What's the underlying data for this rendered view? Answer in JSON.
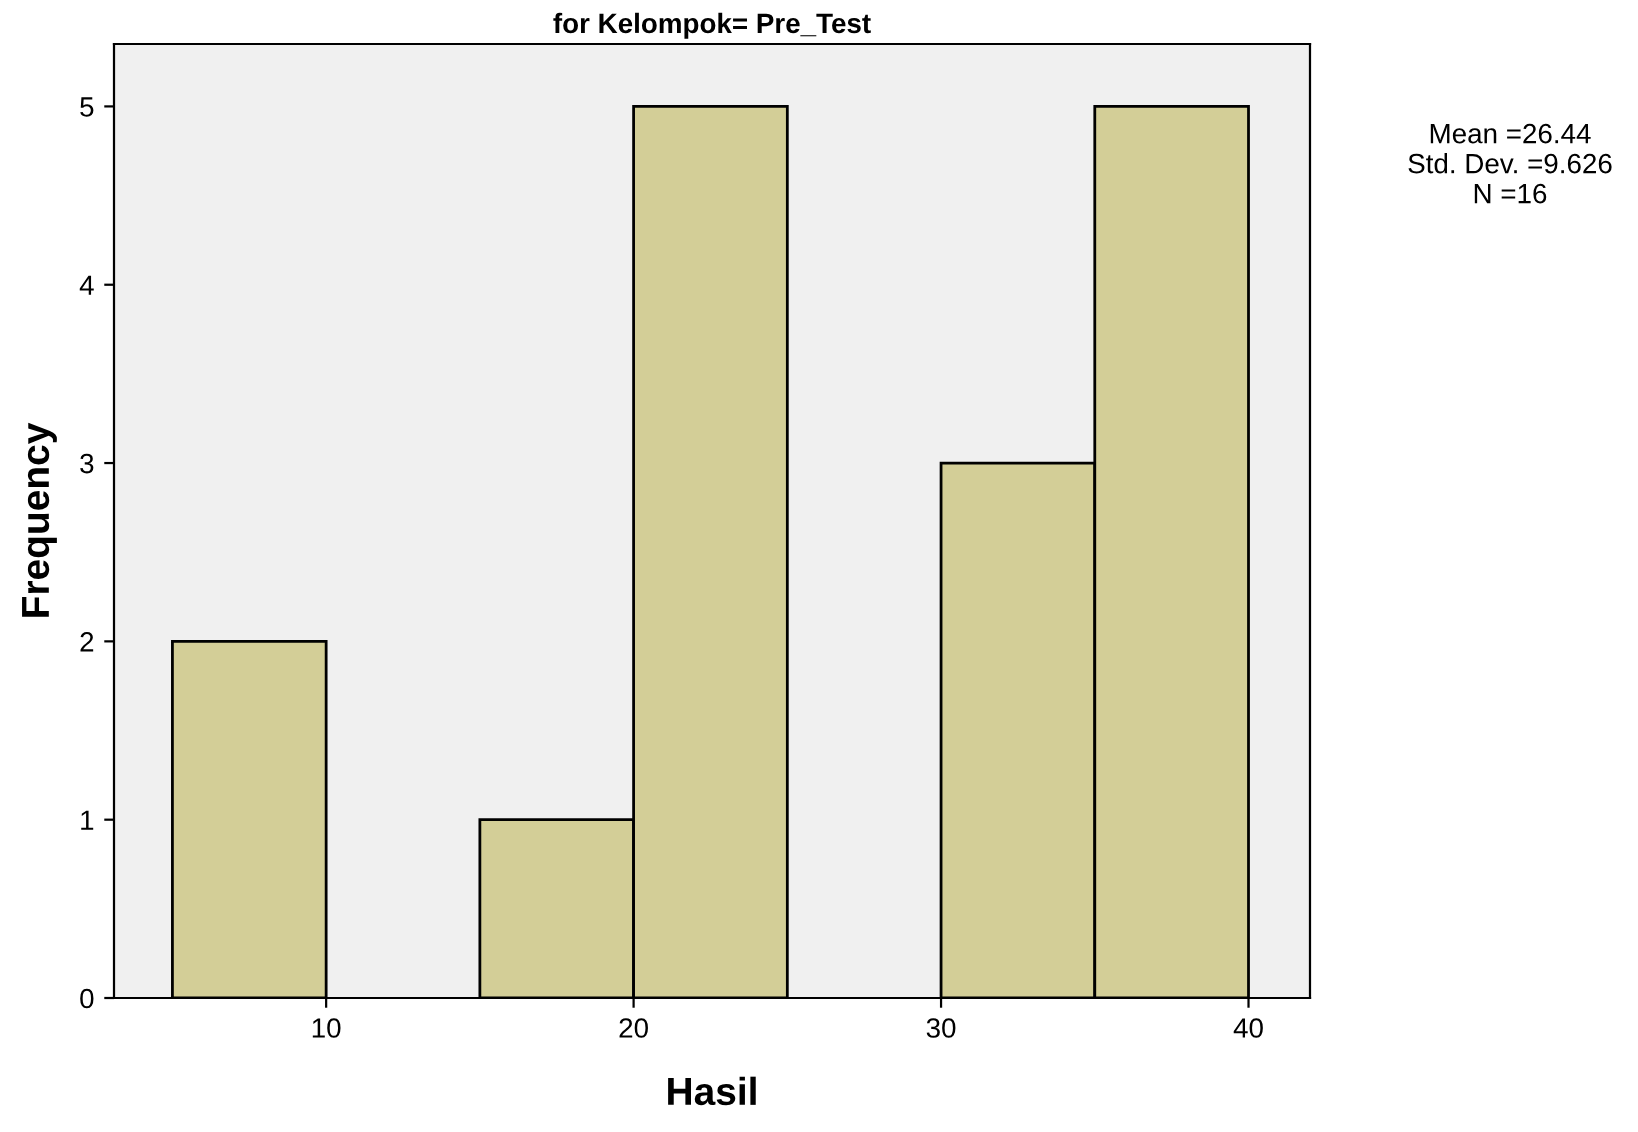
{
  "chart_data": {
    "type": "histogram",
    "title": "for Kelompok= Pre_Test",
    "xlabel": "Hasil",
    "ylabel": "Frequency",
    "bins": [
      5,
      10,
      15,
      20,
      25,
      30,
      35,
      40
    ],
    "values": [
      2,
      0,
      1,
      5,
      0,
      3,
      5
    ],
    "color": "#d3ce97",
    "xlim": [
      3.1,
      42
    ],
    "ylim": [
      0,
      5.35
    ],
    "xticks": [
      10,
      20,
      30,
      40
    ],
    "yticks": [
      0,
      1,
      2,
      3,
      4,
      5
    ],
    "annotations": [
      "Mean =26.44",
      "Std. Dev. =9.626",
      "N =16"
    ]
  }
}
